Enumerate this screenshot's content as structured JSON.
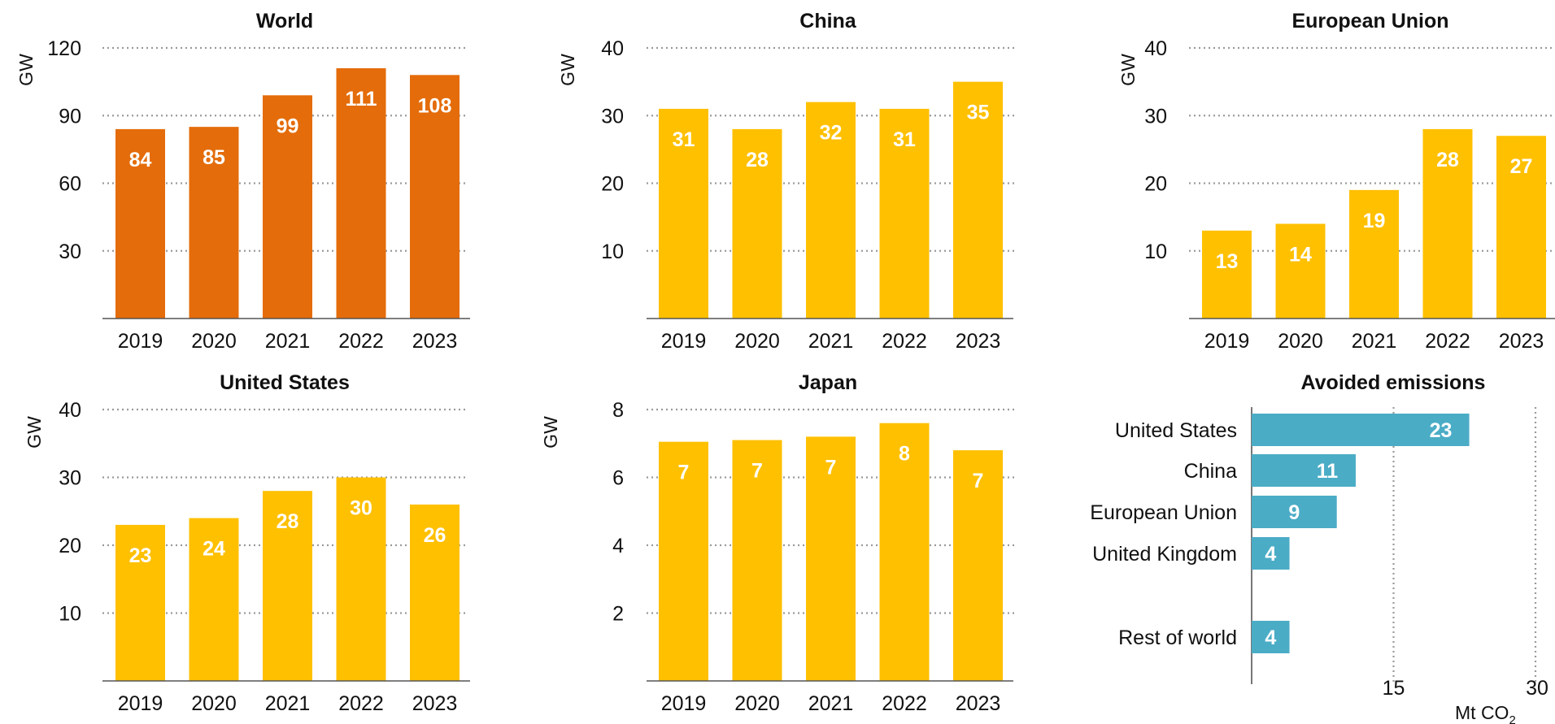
{
  "colors": {
    "world": "#E46C0A",
    "region": "#FFC000",
    "avoided": "#4BACC6",
    "grid": "#9a9a9a"
  },
  "chart_data": [
    {
      "id": "world",
      "type": "bar",
      "title": "World",
      "ylabel": "GW",
      "categories": [
        "2019",
        "2020",
        "2021",
        "2022",
        "2023"
      ],
      "values": [
        84,
        85,
        99,
        111,
        108
      ],
      "yticks": [
        30,
        60,
        90,
        120
      ],
      "ylim": [
        0,
        120
      ],
      "grid": true,
      "color": "#E46C0A"
    },
    {
      "id": "china",
      "type": "bar",
      "title": "China",
      "ylabel": "GW",
      "categories": [
        "2019",
        "2020",
        "2021",
        "2022",
        "2023"
      ],
      "values": [
        31,
        28,
        32,
        31,
        35
      ],
      "yticks": [
        10,
        20,
        30,
        40
      ],
      "ylim": [
        0,
        40
      ],
      "grid": true,
      "color": "#FFC000"
    },
    {
      "id": "eu",
      "type": "bar",
      "title": "European Union",
      "ylabel": "GW",
      "categories": [
        "2019",
        "2020",
        "2021",
        "2022",
        "2023"
      ],
      "values": [
        13,
        14,
        19,
        28,
        27
      ],
      "yticks": [
        10,
        20,
        30,
        40
      ],
      "ylim": [
        0,
        40
      ],
      "grid": true,
      "color": "#FFC000"
    },
    {
      "id": "us",
      "type": "bar",
      "title": "United States",
      "ylabel": "GW",
      "categories": [
        "2019",
        "2020",
        "2021",
        "2022",
        "2023"
      ],
      "values": [
        23,
        24,
        28,
        30,
        26
      ],
      "yticks": [
        10,
        20,
        30,
        40
      ],
      "ylim": [
        0,
        40
      ],
      "grid": true,
      "color": "#FFC000"
    },
    {
      "id": "japan",
      "type": "bar",
      "title": "Japan",
      "ylabel": "GW",
      "categories": [
        "2019",
        "2020",
        "2021",
        "2022",
        "2023"
      ],
      "values": [
        7,
        7,
        7,
        8,
        7
      ],
      "plot_values": [
        7.05,
        7.1,
        7.2,
        7.6,
        6.8
      ],
      "yticks": [
        2,
        4,
        6,
        8
      ],
      "ylim": [
        0,
        8
      ],
      "grid": true,
      "color": "#FFC000"
    },
    {
      "id": "avoided",
      "type": "bar",
      "orientation": "horizontal",
      "title": "Avoided emissions",
      "xlabel": "Mt CO",
      "xlabel_sub": "2",
      "categories": [
        "United States",
        "China",
        "European Union",
        "United Kingdom",
        "",
        "Rest of world"
      ],
      "values": [
        23,
        11,
        9,
        4,
        null,
        4
      ],
      "xticks": [
        15,
        30
      ],
      "xlim": [
        0,
        30
      ],
      "grid": true,
      "color": "#4BACC6"
    }
  ]
}
